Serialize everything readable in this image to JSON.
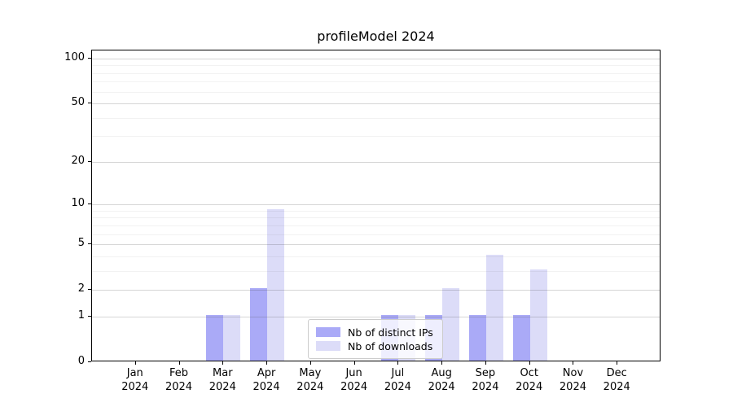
{
  "chart_data": {
    "type": "bar",
    "title": "profileModel 2024",
    "categories": [
      "Jan",
      "Feb",
      "Mar",
      "Apr",
      "May",
      "Jun",
      "Jul",
      "Aug",
      "Sep",
      "Oct",
      "Nov",
      "Dec"
    ],
    "category_year": "2024",
    "series": [
      {
        "name": "Nb of distinct IPs",
        "color": "#aaaaf7",
        "values": [
          0,
          0,
          1,
          2,
          0,
          0,
          1,
          1,
          1,
          1,
          0,
          0
        ]
      },
      {
        "name": "Nb of downloads",
        "color": "#dcdcf8",
        "values": [
          0,
          0,
          1,
          9,
          0,
          0,
          1,
          2,
          4,
          3,
          0,
          0
        ]
      }
    ],
    "yscale": "log1p",
    "ylim": [
      0,
      100
    ],
    "yticks": [
      0,
      1,
      2,
      5,
      10,
      20,
      50,
      100
    ],
    "minor_yticks": [
      3,
      4,
      6,
      7,
      8,
      9,
      30,
      40,
      60,
      70,
      80,
      90
    ],
    "grid": true,
    "legend_position": "lower center"
  }
}
